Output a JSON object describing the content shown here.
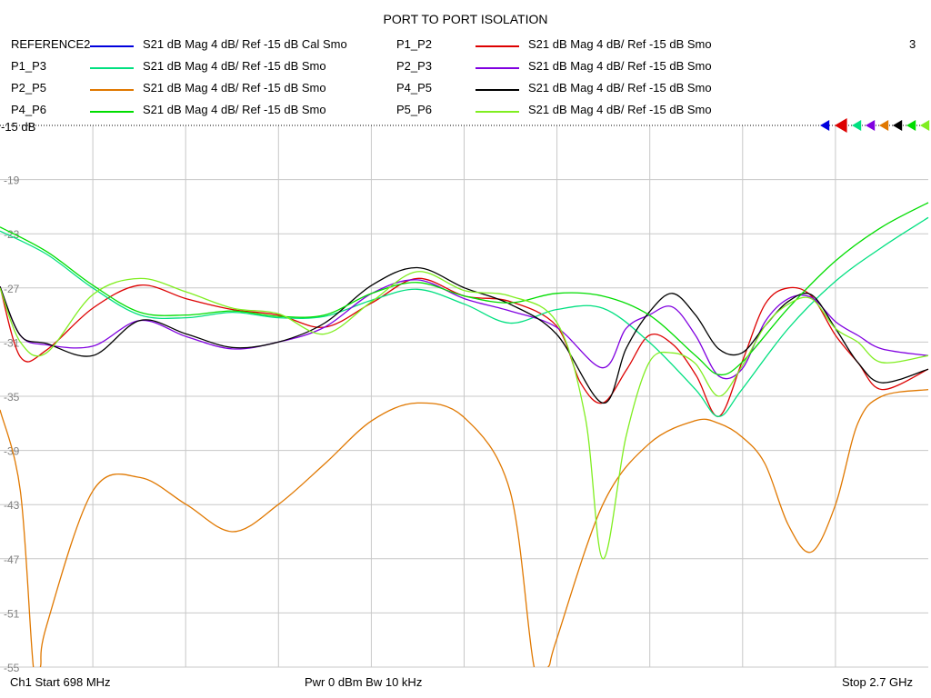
{
  "chart_data": {
    "type": "line",
    "title": "PORT TO PORT ISOLATION",
    "channel_number": "3",
    "ref_label": "-15 dB",
    "y_ticks": [
      "-19",
      "-23",
      "-27",
      "-31",
      "-35",
      "-39",
      "-43",
      "-47",
      "-51",
      "-55"
    ],
    "ylim": [
      -55,
      -15
    ],
    "xlim": [
      698,
      2700
    ],
    "x_unit": "MHz",
    "grid": true,
    "footer": {
      "left": "Ch1  Start  698 MHz",
      "middle": "Pwr  0 dBm  Bw  10 kHz",
      "right": "Stop  2.7 GHz"
    },
    "series": [
      {
        "name": "REFERENCE2",
        "desc": "S21  dB Mag  4 dB/ Ref -15 dB  Cal Smo",
        "color": "#0000dd",
        "points": []
      },
      {
        "name": "P1_P2",
        "desc": "S21  dB Mag  4 dB/ Ref -15 dB  Smo",
        "color": "#dd0000",
        "points": [
          [
            698,
            -26.9
          ],
          [
            742,
            -32.1
          ],
          [
            798,
            -31.6
          ],
          [
            898,
            -28.5
          ],
          [
            1000,
            -26.8
          ],
          [
            1100,
            -27.8
          ],
          [
            1200,
            -28.6
          ],
          [
            1298,
            -29.0
          ],
          [
            1398,
            -29.9
          ],
          [
            1500,
            -28.1
          ],
          [
            1598,
            -26.3
          ],
          [
            1700,
            -27.6
          ],
          [
            1798,
            -28.0
          ],
          [
            1898,
            -29.8
          ],
          [
            1950,
            -34.0
          ],
          [
            1998,
            -35.5
          ],
          [
            2050,
            -33.0
          ],
          [
            2098,
            -30.5
          ],
          [
            2150,
            -31.2
          ],
          [
            2200,
            -33.5
          ],
          [
            2248,
            -36.5
          ],
          [
            2298,
            -32.5
          ],
          [
            2348,
            -28.2
          ],
          [
            2398,
            -27.0
          ],
          [
            2448,
            -27.6
          ],
          [
            2500,
            -30.5
          ],
          [
            2548,
            -32.5
          ],
          [
            2600,
            -34.5
          ],
          [
            2700,
            -33.0
          ]
        ]
      },
      {
        "name": "P1_P3",
        "desc": "S21  dB Mag  4 dB/ Ref -15 dB  Smo",
        "color": "#00e080",
        "points": [
          [
            698,
            -22.8
          ],
          [
            798,
            -24.5
          ],
          [
            898,
            -27.0
          ],
          [
            1000,
            -29.0
          ],
          [
            1100,
            -29.2
          ],
          [
            1200,
            -28.8
          ],
          [
            1298,
            -29.2
          ],
          [
            1398,
            -29.1
          ],
          [
            1500,
            -27.9
          ],
          [
            1598,
            -27.1
          ],
          [
            1700,
            -28.2
          ],
          [
            1798,
            -29.6
          ],
          [
            1898,
            -28.6
          ],
          [
            1998,
            -28.5
          ],
          [
            2098,
            -31.0
          ],
          [
            2198,
            -34.5
          ],
          [
            2248,
            -36.5
          ],
          [
            2298,
            -34.5
          ],
          [
            2398,
            -30.0
          ],
          [
            2500,
            -26.5
          ],
          [
            2600,
            -24.0
          ],
          [
            2700,
            -21.8
          ]
        ]
      },
      {
        "name": "P2_P3",
        "desc": "S21  dB Mag  4 dB/ Ref -15 dB  Smo",
        "color": "#8000e0",
        "points": [
          [
            698,
            -26.9
          ],
          [
            742,
            -30.5
          ],
          [
            798,
            -31.2
          ],
          [
            898,
            -31.3
          ],
          [
            1000,
            -29.4
          ],
          [
            1100,
            -30.6
          ],
          [
            1200,
            -31.5
          ],
          [
            1298,
            -31.0
          ],
          [
            1398,
            -29.9
          ],
          [
            1500,
            -27.4
          ],
          [
            1598,
            -26.4
          ],
          [
            1700,
            -27.8
          ],
          [
            1798,
            -28.7
          ],
          [
            1898,
            -29.9
          ],
          [
            1998,
            -32.9
          ],
          [
            2048,
            -30.0
          ],
          [
            2098,
            -29.0
          ],
          [
            2148,
            -28.4
          ],
          [
            2198,
            -30.5
          ],
          [
            2248,
            -33.5
          ],
          [
            2298,
            -33.0
          ],
          [
            2348,
            -29.5
          ],
          [
            2398,
            -27.8
          ],
          [
            2448,
            -27.7
          ],
          [
            2500,
            -29.5
          ],
          [
            2548,
            -30.5
          ],
          [
            2600,
            -31.5
          ],
          [
            2700,
            -32.0
          ]
        ]
      },
      {
        "name": "P2_P5",
        "desc": "S21  dB Mag  4 dB/ Ref -15 dB  Smo",
        "color": "#e07800",
        "points": [
          [
            698,
            -36.0
          ],
          [
            742,
            -42.0
          ],
          [
            770,
            -55.0
          ],
          [
            785,
            -55.0
          ],
          [
            798,
            -52.0
          ],
          [
            898,
            -42.0
          ],
          [
            1000,
            -41.0
          ],
          [
            1100,
            -43.0
          ],
          [
            1200,
            -45.0
          ],
          [
            1298,
            -43.0
          ],
          [
            1398,
            -40.0
          ],
          [
            1500,
            -36.8
          ],
          [
            1598,
            -35.5
          ],
          [
            1700,
            -36.6
          ],
          [
            1798,
            -42.0
          ],
          [
            1850,
            -55.0
          ],
          [
            1880,
            -55.0
          ],
          [
            1898,
            -53.0
          ],
          [
            1998,
            -43.0
          ],
          [
            2098,
            -38.5
          ],
          [
            2198,
            -36.8
          ],
          [
            2248,
            -37.0
          ],
          [
            2298,
            -38.0
          ],
          [
            2348,
            -40.0
          ],
          [
            2398,
            -44.5
          ],
          [
            2448,
            -46.5
          ],
          [
            2500,
            -43.0
          ],
          [
            2548,
            -37.0
          ],
          [
            2600,
            -35.0
          ],
          [
            2700,
            -34.5
          ]
        ]
      },
      {
        "name": "P4_P5",
        "desc": "S21  dB Mag  4 dB/ Ref -15 dB  Smo",
        "color": "#000000",
        "points": [
          [
            698,
            -26.9
          ],
          [
            742,
            -30.5
          ],
          [
            798,
            -31.1
          ],
          [
            898,
            -32.0
          ],
          [
            1000,
            -29.4
          ],
          [
            1100,
            -30.4
          ],
          [
            1200,
            -31.4
          ],
          [
            1298,
            -31.0
          ],
          [
            1398,
            -29.6
          ],
          [
            1500,
            -26.8
          ],
          [
            1598,
            -25.5
          ],
          [
            1700,
            -27.0
          ],
          [
            1798,
            -28.2
          ],
          [
            1898,
            -30.4
          ],
          [
            1998,
            -35.5
          ],
          [
            2048,
            -31.5
          ],
          [
            2098,
            -28.8
          ],
          [
            2148,
            -27.4
          ],
          [
            2198,
            -29.0
          ],
          [
            2248,
            -31.5
          ],
          [
            2298,
            -31.8
          ],
          [
            2348,
            -29.8
          ],
          [
            2398,
            -28.0
          ],
          [
            2448,
            -27.5
          ],
          [
            2500,
            -30.0
          ],
          [
            2548,
            -32.5
          ],
          [
            2600,
            -34.0
          ],
          [
            2700,
            -33.0
          ]
        ]
      },
      {
        "name": "P4_P6",
        "desc": "S21  dB Mag  4 dB/ Ref -15 dB  Smo",
        "color": "#00dd00",
        "points": [
          [
            698,
            -22.5
          ],
          [
            798,
            -24.3
          ],
          [
            898,
            -26.8
          ],
          [
            1000,
            -28.8
          ],
          [
            1100,
            -29.0
          ],
          [
            1200,
            -28.7
          ],
          [
            1298,
            -29.1
          ],
          [
            1398,
            -29.0
          ],
          [
            1500,
            -27.4
          ],
          [
            1598,
            -26.6
          ],
          [
            1700,
            -27.6
          ],
          [
            1798,
            -28.1
          ],
          [
            1898,
            -27.4
          ],
          [
            1998,
            -27.6
          ],
          [
            2098,
            -29.0
          ],
          [
            2198,
            -32.0
          ],
          [
            2248,
            -33.4
          ],
          [
            2298,
            -32.5
          ],
          [
            2398,
            -28.5
          ],
          [
            2500,
            -25.0
          ],
          [
            2600,
            -22.5
          ],
          [
            2700,
            -20.7
          ]
        ]
      },
      {
        "name": "P5_P6",
        "desc": "S21  dB Mag  4 dB/ Ref -15 dB  Smo",
        "color": "#80ee20",
        "points": [
          [
            698,
            -27.0
          ],
          [
            742,
            -31.0
          ],
          [
            798,
            -31.8
          ],
          [
            898,
            -27.5
          ],
          [
            1000,
            -26.3
          ],
          [
            1100,
            -27.3
          ],
          [
            1200,
            -28.5
          ],
          [
            1298,
            -28.9
          ],
          [
            1398,
            -30.4
          ],
          [
            1500,
            -28.0
          ],
          [
            1598,
            -25.8
          ],
          [
            1700,
            -27.2
          ],
          [
            1798,
            -27.6
          ],
          [
            1898,
            -29.5
          ],
          [
            1960,
            -36.5
          ],
          [
            1998,
            -47.0
          ],
          [
            2048,
            -38.0
          ],
          [
            2098,
            -32.5
          ],
          [
            2148,
            -31.8
          ],
          [
            2198,
            -32.6
          ],
          [
            2248,
            -35.0
          ],
          [
            2298,
            -32.8
          ],
          [
            2348,
            -29.8
          ],
          [
            2398,
            -28.2
          ],
          [
            2448,
            -27.8
          ],
          [
            2500,
            -30.0
          ],
          [
            2548,
            -31.0
          ],
          [
            2600,
            -32.5
          ],
          [
            2700,
            -32.0
          ]
        ]
      }
    ]
  }
}
